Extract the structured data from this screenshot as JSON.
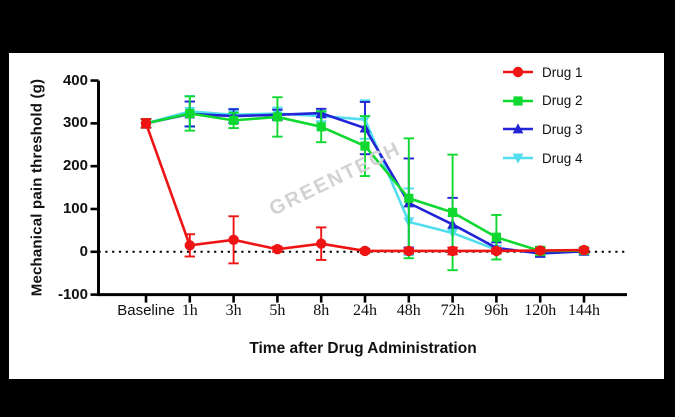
{
  "watermark": "GREENTECH",
  "chart_data": {
    "type": "line",
    "title": "",
    "xlabel": "Time after Drug Administration",
    "ylabel": "Mechanical pain threshold (g)",
    "categories": [
      "Baseline",
      "1h",
      "3h",
      "5h",
      "8h",
      "24h",
      "48h",
      "72h",
      "96h",
      "120h",
      "144h"
    ],
    "y_ticks": [
      400,
      300,
      200,
      100,
      0,
      -100
    ],
    "ylim": [
      -100,
      400
    ],
    "zero_line": "dotted",
    "grid": false,
    "legend_position": "top-right",
    "error_bars": true,
    "series": [
      {
        "name": "Drug 1",
        "color": "#ee1414",
        "marker": "circle",
        "values": [
          300,
          15,
          28,
          6,
          19,
          2,
          2,
          2,
          2,
          3,
          4
        ],
        "errors": [
          10,
          26,
          55,
          6,
          38,
          5,
          6,
          8,
          6,
          5,
          5
        ]
      },
      {
        "name": "Drug 2",
        "color": "#0fd930",
        "marker": "square",
        "values": [
          300,
          323,
          307,
          315,
          292,
          247,
          125,
          92,
          34,
          2,
          3
        ],
        "errors": [
          10,
          40,
          18,
          46,
          36,
          70,
          140,
          135,
          52,
          10,
          6
        ]
      },
      {
        "name": "Drug 3",
        "color": "#2224d6",
        "marker": "triangle-up",
        "values": [
          300,
          322,
          317,
          320,
          324,
          289,
          114,
          64,
          9,
          -4,
          1
        ],
        "errors": [
          10,
          29,
          16,
          12,
          10,
          61,
          104,
          62,
          13,
          6,
          5
        ]
      },
      {
        "name": "Drug 4",
        "color": "#53def0",
        "marker": "triangle-down",
        "values": [
          300,
          328,
          320,
          323,
          317,
          309,
          70,
          44,
          5,
          0,
          1
        ],
        "errors": [
          10,
          36,
          14,
          14,
          12,
          45,
          78,
          40,
          9,
          5,
          5
        ]
      }
    ]
  }
}
